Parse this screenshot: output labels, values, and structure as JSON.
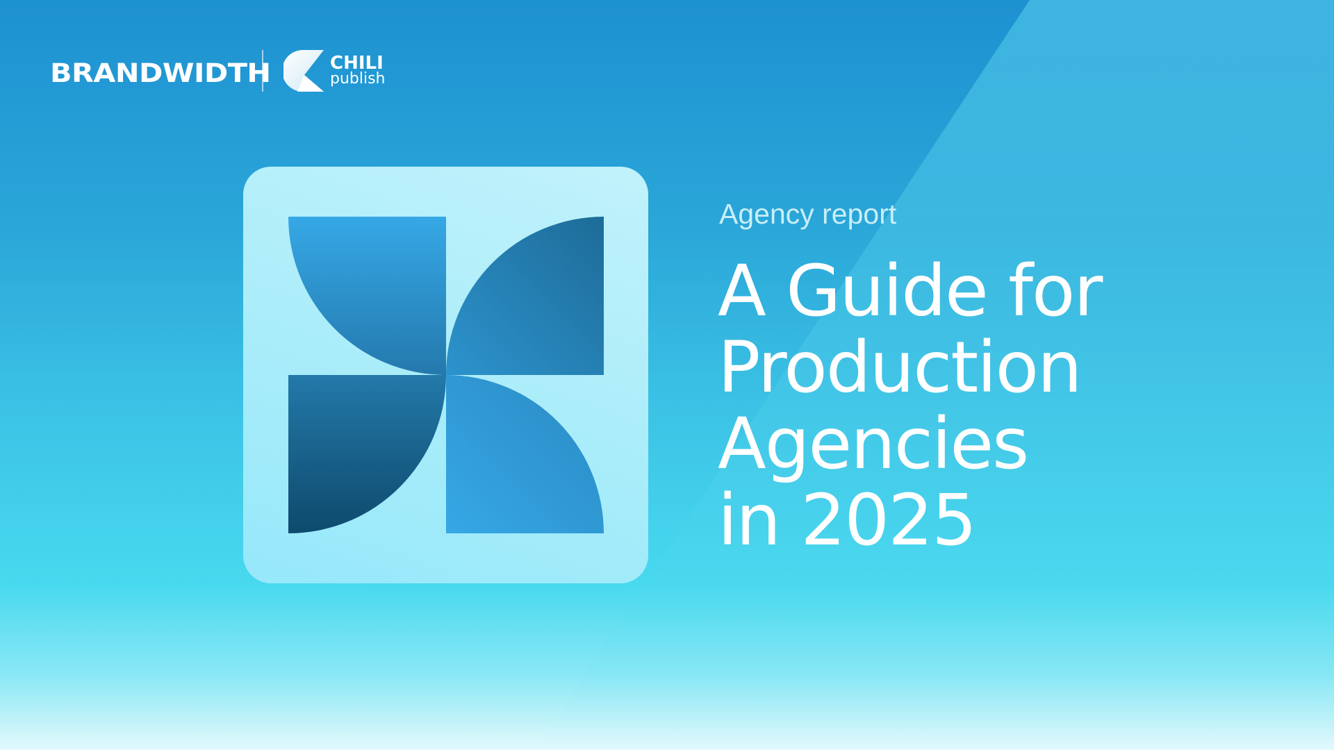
{
  "header": {
    "brand_logo": "BRANDWIDTH",
    "partner_logo_line1": "CHILI",
    "partner_logo_line2": "publish"
  },
  "hero": {
    "eyebrow": "Agency report",
    "title_lines": [
      "A Guide for",
      "Production",
      "Agencies",
      "in 2025"
    ]
  },
  "colors": {
    "bg_top": "#1d91d1",
    "bg_mid": "#48d9ef",
    "card": "#b3eefb",
    "shape_light": "#36a8e6",
    "shape_dark": "#0f4b6e"
  }
}
